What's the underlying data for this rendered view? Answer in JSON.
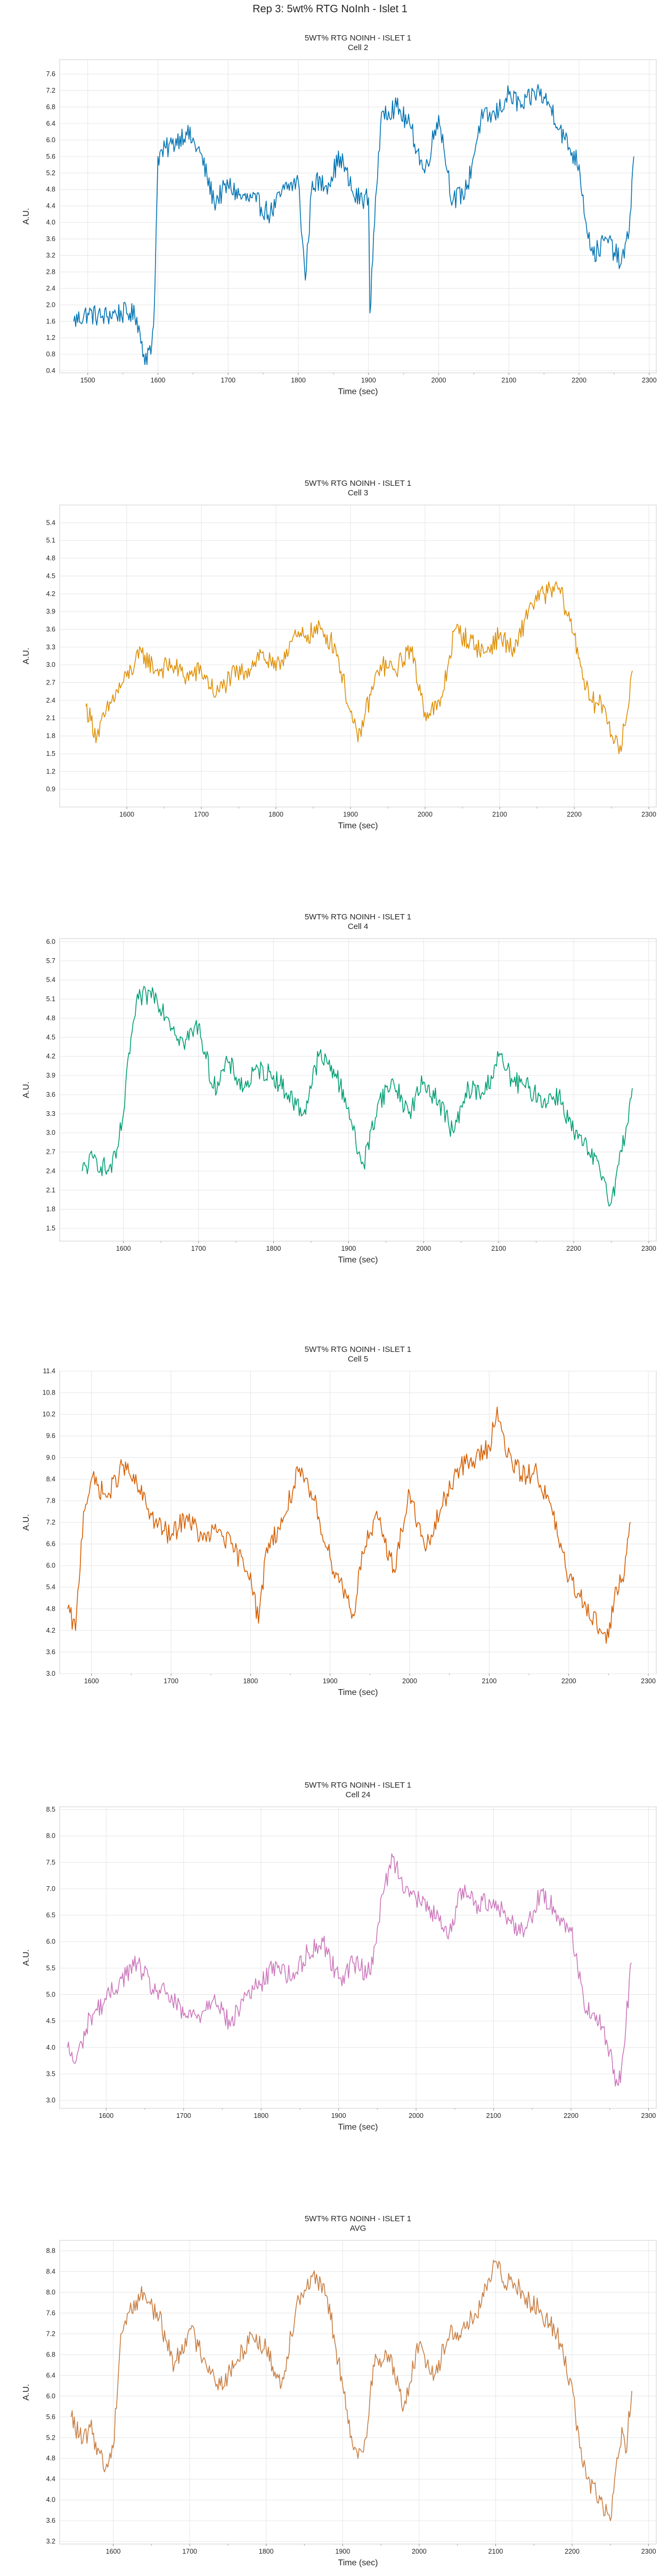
{
  "figure": {
    "title": "Rep 3: 5wt% RTG NoInh - Islet 1"
  },
  "chart_data": [
    {
      "type": "line",
      "title": "5WT% RTG NOINH - ISLET 1",
      "subtitle": "Cell 2",
      "xlabel": "Time (sec)",
      "ylabel": "A.U.",
      "xlim": [
        1460,
        2310
      ],
      "ylim": [
        0.35,
        7.95
      ],
      "xticks": [
        1500,
        1600,
        1700,
        1800,
        1900,
        2000,
        2100,
        2200,
        2300
      ],
      "yticks": [
        0.4,
        0.8,
        1.2,
        1.6,
        2.0,
        2.4,
        2.8,
        3.2,
        3.6,
        4.0,
        4.4,
        4.8,
        5.2,
        5.6,
        6.0,
        6.4,
        6.8,
        7.2,
        7.6
      ],
      "ytick_decimals": 1,
      "color": "#0173b2",
      "grid": true,
      "series": [
        {
          "x": [
            1480,
            1500,
            1520,
            1540,
            1560,
            1570,
            1580,
            1590,
            1595,
            1600,
            1620,
            1640,
            1660,
            1680,
            1700,
            1720,
            1740,
            1760,
            1780,
            1800,
            1810,
            1820,
            1840,
            1860,
            1880,
            1900,
            1902,
            1910,
            1920,
            1940,
            1960,
            1980,
            2000,
            2020,
            2040,
            2060,
            2080,
            2100,
            2120,
            2140,
            2160,
            2180,
            2200,
            2210,
            2220,
            2240,
            2260,
            2270,
            2278
          ],
          "y": [
            1.6,
            1.8,
            1.7,
            1.8,
            1.8,
            1.7,
            0.8,
            0.8,
            2.0,
            5.6,
            5.9,
            6.2,
            5.7,
            4.5,
            4.9,
            4.6,
            4.5,
            4.2,
            4.8,
            5.0,
            2.6,
            5.0,
            4.9,
            5.6,
            4.6,
            4.6,
            1.8,
            4.6,
            6.7,
            6.8,
            6.3,
            5.2,
            6.6,
            4.5,
            4.8,
            6.5,
            6.6,
            7.1,
            6.8,
            7.2,
            6.8,
            6.0,
            5.4,
            4.0,
            3.2,
            3.6,
            3.0,
            3.6,
            5.6
          ]
        }
      ]
    },
    {
      "type": "line",
      "title": "5WT% RTG NOINH - ISLET 1",
      "subtitle": "Cell 3",
      "xlabel": "Time (sec)",
      "ylabel": "A.U.",
      "xlim": [
        1510,
        2310
      ],
      "ylim": [
        0.6,
        5.7
      ],
      "xticks": [
        1600,
        1700,
        1800,
        1900,
        2000,
        2100,
        2200,
        2300
      ],
      "yticks": [
        0.9,
        1.2,
        1.5,
        1.8,
        2.1,
        2.4,
        2.7,
        3.0,
        3.3,
        3.6,
        3.9,
        4.2,
        4.5,
        4.8,
        5.1,
        5.4
      ],
      "ytick_decimals": 1,
      "color": "#de8f05",
      "grid": true,
      "series": [
        {
          "x": [
            1545,
            1560,
            1580,
            1600,
            1620,
            1640,
            1660,
            1680,
            1700,
            1720,
            1740,
            1760,
            1780,
            1800,
            1820,
            1840,
            1860,
            1880,
            1900,
            1910,
            1920,
            1940,
            1960,
            1980,
            2000,
            2020,
            2040,
            2060,
            2080,
            2100,
            2120,
            2140,
            2160,
            2180,
            2200,
            2220,
            2240,
            2260,
            2270,
            2278
          ],
          "y": [
            2.3,
            1.8,
            2.4,
            2.8,
            3.2,
            2.9,
            3.0,
            2.8,
            2.9,
            2.5,
            2.8,
            2.9,
            3.2,
            2.9,
            3.4,
            3.5,
            3.6,
            3.3,
            2.2,
            1.7,
            2.2,
            3.0,
            2.9,
            3.3,
            2.2,
            2.3,
            3.6,
            3.4,
            3.2,
            3.5,
            3.2,
            4.0,
            4.2,
            4.3,
            3.5,
            2.4,
            2.3,
            1.5,
            2.1,
            2.9
          ]
        }
      ]
    },
    {
      "type": "line",
      "title": "5WT% RTG NOINH - ISLET 1",
      "subtitle": "Cell 4",
      "xlabel": "Time (sec)",
      "ylabel": "A.U.",
      "xlim": [
        1515,
        2310
      ],
      "ylim": [
        1.3,
        6.05
      ],
      "xticks": [
        1600,
        1700,
        1800,
        1900,
        2000,
        2100,
        2200,
        2300
      ],
      "yticks": [
        1.5,
        1.8,
        2.1,
        2.4,
        2.7,
        3.0,
        3.3,
        3.6,
        3.9,
        4.2,
        4.5,
        4.8,
        5.1,
        5.4,
        5.7,
        6.0
      ],
      "ytick_decimals": 1,
      "color": "#029e73",
      "grid": true,
      "series": [
        {
          "x": [
            1545,
            1560,
            1580,
            1590,
            1600,
            1610,
            1620,
            1640,
            1660,
            1680,
            1700,
            1720,
            1740,
            1760,
            1780,
            1800,
            1820,
            1840,
            1860,
            1880,
            1900,
            1910,
            1920,
            1940,
            1960,
            1980,
            2000,
            2020,
            2040,
            2060,
            2080,
            2100,
            2120,
            2140,
            2160,
            2180,
            2200,
            2220,
            2240,
            2250,
            2260,
            2270,
            2278
          ],
          "y": [
            2.4,
            2.6,
            2.4,
            2.6,
            3.3,
            4.5,
            5.1,
            5.2,
            4.8,
            4.4,
            4.7,
            3.7,
            4.1,
            3.7,
            4.0,
            3.9,
            3.6,
            3.3,
            4.2,
            4.0,
            3.4,
            2.8,
            2.5,
            3.5,
            3.8,
            3.3,
            3.8,
            3.5,
            3.0,
            3.7,
            3.6,
            4.2,
            3.8,
            3.7,
            3.5,
            3.6,
            3.0,
            2.7,
            2.3,
            1.9,
            2.5,
            3.1,
            3.7
          ]
        }
      ]
    },
    {
      "type": "line",
      "title": "5WT% RTG NOINH - ISLET 1",
      "subtitle": "Cell 5",
      "xlabel": "Time (sec)",
      "ylabel": "A.U.",
      "xlim": [
        1560,
        2310
      ],
      "ylim": [
        3.0,
        11.4
      ],
      "xticks": [
        1600,
        1700,
        1800,
        1900,
        2000,
        2100,
        2200,
        2300
      ],
      "yticks": [
        3.0,
        3.6,
        4.2,
        4.8,
        5.4,
        6.0,
        6.6,
        7.2,
        7.8,
        8.4,
        9.0,
        9.6,
        10.2,
        10.8,
        11.4
      ],
      "ytick_decimals": 1,
      "color": "#d55e00",
      "grid": true,
      "series": [
        {
          "x": [
            1570,
            1580,
            1590,
            1600,
            1620,
            1640,
            1660,
            1680,
            1700,
            1720,
            1740,
            1760,
            1780,
            1800,
            1810,
            1820,
            1840,
            1860,
            1880,
            1900,
            1920,
            1930,
            1940,
            1960,
            1980,
            2000,
            2020,
            2040,
            2060,
            2080,
            2100,
            2110,
            2120,
            2140,
            2160,
            2180,
            2200,
            2220,
            2240,
            2250,
            2260,
            2270,
            2278
          ],
          "y": [
            4.8,
            4.2,
            7.5,
            8.4,
            7.9,
            8.8,
            8.1,
            7.2,
            6.8,
            7.4,
            6.7,
            7.0,
            6.4,
            5.8,
            4.4,
            6.5,
            7.2,
            8.6,
            7.8,
            6.2,
            5.2,
            4.6,
            6.4,
            7.3,
            5.9,
            8.0,
            6.4,
            7.6,
            8.7,
            8.9,
            9.3,
            10.4,
            9.2,
            8.5,
            8.6,
            7.4,
            5.6,
            5.0,
            4.2,
            4.0,
            5.4,
            5.8,
            7.2
          ]
        }
      ]
    },
    {
      "type": "line",
      "title": "5WT% RTG NOINH - ISLET 1",
      "subtitle": "Cell 24",
      "xlabel": "Time (sec)",
      "ylabel": "A.U.",
      "xlim": [
        1540,
        2310
      ],
      "ylim": [
        2.85,
        8.55
      ],
      "xticks": [
        1600,
        1700,
        1800,
        1900,
        2000,
        2100,
        2200,
        2300
      ],
      "yticks": [
        3.0,
        3.5,
        4.0,
        4.5,
        5.0,
        5.5,
        6.0,
        6.5,
        7.0,
        7.5,
        8.0,
        8.5
      ],
      "ytick_decimals": 1,
      "color": "#cc78bc",
      "grid": true,
      "series": [
        {
          "x": [
            1550,
            1560,
            1580,
            1600,
            1620,
            1640,
            1660,
            1680,
            1700,
            1720,
            1740,
            1760,
            1780,
            1800,
            1820,
            1840,
            1860,
            1880,
            1900,
            1920,
            1940,
            1960,
            1970,
            1980,
            2000,
            2020,
            2040,
            2060,
            2080,
            2100,
            2120,
            2140,
            2160,
            2180,
            2200,
            2220,
            2240,
            2260,
            2265,
            2278
          ],
          "y": [
            4.0,
            3.7,
            4.6,
            4.9,
            5.3,
            5.6,
            5.1,
            5.0,
            4.6,
            4.6,
            5.0,
            4.4,
            5.0,
            5.2,
            5.6,
            5.3,
            5.8,
            6.0,
            5.3,
            5.6,
            5.4,
            7.1,
            7.6,
            7.2,
            6.8,
            6.6,
            6.1,
            7.0,
            6.7,
            6.8,
            6.4,
            6.2,
            6.9,
            6.6,
            6.2,
            4.7,
            4.4,
            3.3,
            3.6,
            5.6
          ]
        }
      ]
    },
    {
      "type": "line",
      "title": "5WT% RTG NOINH - ISLET 1",
      "subtitle": "AVG",
      "xlabel": "Time (sec)",
      "ylabel": "A.U.",
      "xlim": [
        1530,
        2310
      ],
      "ylim": [
        3.15,
        9.0
      ],
      "xticks": [
        1600,
        1700,
        1800,
        1900,
        2000,
        2100,
        2200,
        2300
      ],
      "yticks": [
        3.2,
        3.6,
        4.0,
        4.4,
        4.8,
        5.2,
        5.6,
        6.0,
        6.4,
        6.8,
        7.2,
        7.6,
        8.0,
        8.4,
        8.8
      ],
      "ytick_decimals": 1,
      "color": "#c87f44",
      "grid": true,
      "series": [
        {
          "x": [
            1545,
            1560,
            1570,
            1580,
            1590,
            1600,
            1610,
            1620,
            1640,
            1660,
            1680,
            1700,
            1720,
            1740,
            1760,
            1780,
            1800,
            1820,
            1840,
            1860,
            1880,
            1900,
            1910,
            1920,
            1930,
            1940,
            1960,
            1980,
            2000,
            2020,
            2040,
            2060,
            2080,
            2100,
            2110,
            2120,
            2140,
            2160,
            2180,
            2200,
            2210,
            2220,
            2240,
            2250,
            2260,
            2265,
            2270,
            2278
          ],
          "y": [
            5.6,
            5.1,
            5.4,
            5.0,
            4.6,
            5.0,
            7.2,
            7.6,
            8.0,
            7.5,
            6.6,
            7.3,
            6.7,
            6.2,
            6.6,
            7.2,
            6.9,
            6.2,
            7.8,
            8.3,
            7.9,
            6.2,
            5.2,
            4.8,
            5.2,
            6.6,
            6.8,
            5.8,
            7.0,
            6.4,
            7.2,
            7.3,
            7.7,
            8.6,
            8.2,
            8.3,
            7.9,
            7.6,
            7.2,
            6.2,
            5.0,
            4.4,
            3.9,
            3.6,
            4.8,
            5.4,
            4.9,
            6.1
          ]
        }
      ]
    }
  ]
}
